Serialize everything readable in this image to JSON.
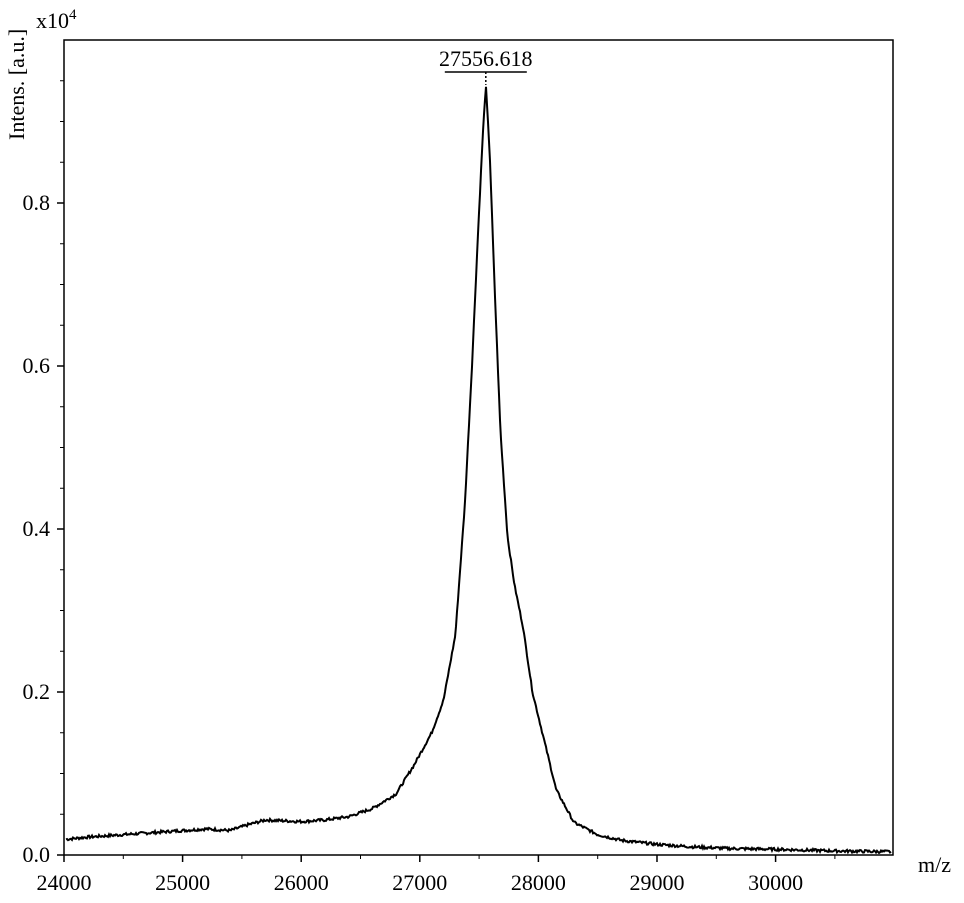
{
  "chart_data": {
    "type": "line",
    "title": "",
    "xlabel": "m/z",
    "ylabel": "Intens. [a.u.]",
    "y_multiplier": "x10",
    "y_multiplier_exp": "4",
    "xlim": [
      24000,
      30990
    ],
    "ylim": [
      0.0,
      1.0
    ],
    "x_ticks": [
      24000,
      25000,
      26000,
      27000,
      28000,
      29000,
      30000
    ],
    "x_tick_labels": [
      "24000",
      "25000",
      "26000",
      "27000",
      "28000",
      "29000",
      "30000"
    ],
    "y_ticks": [
      0.0,
      0.2,
      0.4,
      0.6,
      0.8
    ],
    "y_tick_labels": [
      "0.0",
      "0.2",
      "0.4",
      "0.6",
      "0.8"
    ],
    "grid": false,
    "peak_label": "27556.618",
    "peak": {
      "x": 27556.618,
      "y": 0.945
    },
    "series": [
      {
        "x": [
          24000,
          24200,
          24400,
          24600,
          24800,
          25000,
          25200,
          25400,
          25550,
          25700,
          25850,
          26000,
          26200,
          26400,
          26600,
          26800,
          26950,
          27100,
          27200,
          27300,
          27380,
          27440,
          27490,
          27530,
          27556.618,
          27590,
          27630,
          27680,
          27740,
          27800,
          27870,
          27950,
          28050,
          28150,
          28300,
          28500,
          28700,
          29000,
          29300,
          29600,
          30000,
          30500,
          30990
        ],
        "y": [
          0.019,
          0.022,
          0.024,
          0.026,
          0.028,
          0.03,
          0.032,
          0.03,
          0.037,
          0.043,
          0.042,
          0.041,
          0.043,
          0.047,
          0.057,
          0.075,
          0.11,
          0.15,
          0.19,
          0.27,
          0.43,
          0.6,
          0.76,
          0.88,
          0.945,
          0.86,
          0.7,
          0.52,
          0.39,
          0.33,
          0.28,
          0.2,
          0.14,
          0.08,
          0.04,
          0.025,
          0.018,
          0.013,
          0.01,
          0.008,
          0.007,
          0.005,
          0.004
        ]
      }
    ]
  }
}
